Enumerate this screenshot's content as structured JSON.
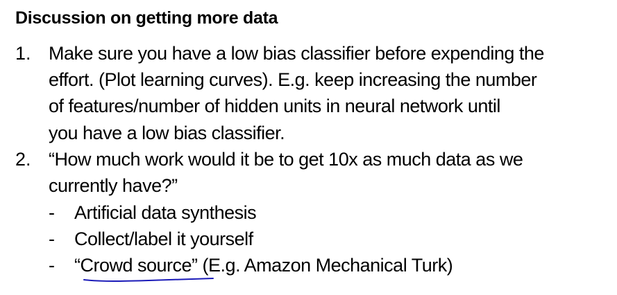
{
  "title": "Discussion on getting more data",
  "items": [
    {
      "number": "1.",
      "lines": [
        "Make sure you have a low bias classifier before expending the",
        "effort. (Plot learning curves). E.g. keep increasing the number",
        "of features/number of hidden units in neural network until",
        "you have a low bias classifier."
      ]
    },
    {
      "number": "2.",
      "lines": [
        "“How much work would it be to get 10x as much data as we",
        "currently have?”"
      ],
      "bullets": [
        {
          "dash": "-",
          "text": "Artificial data synthesis"
        },
        {
          "dash": "-",
          "text": "Collect/label it yourself"
        },
        {
          "dash": "-",
          "text_underlined": "“Crowd source”",
          "text_rest": " (E.g. Amazon Mechanical Turk)"
        }
      ]
    }
  ],
  "colors": {
    "text": "#000000",
    "annotation_underline": "#1a1ab8",
    "background": "#ffffff"
  }
}
